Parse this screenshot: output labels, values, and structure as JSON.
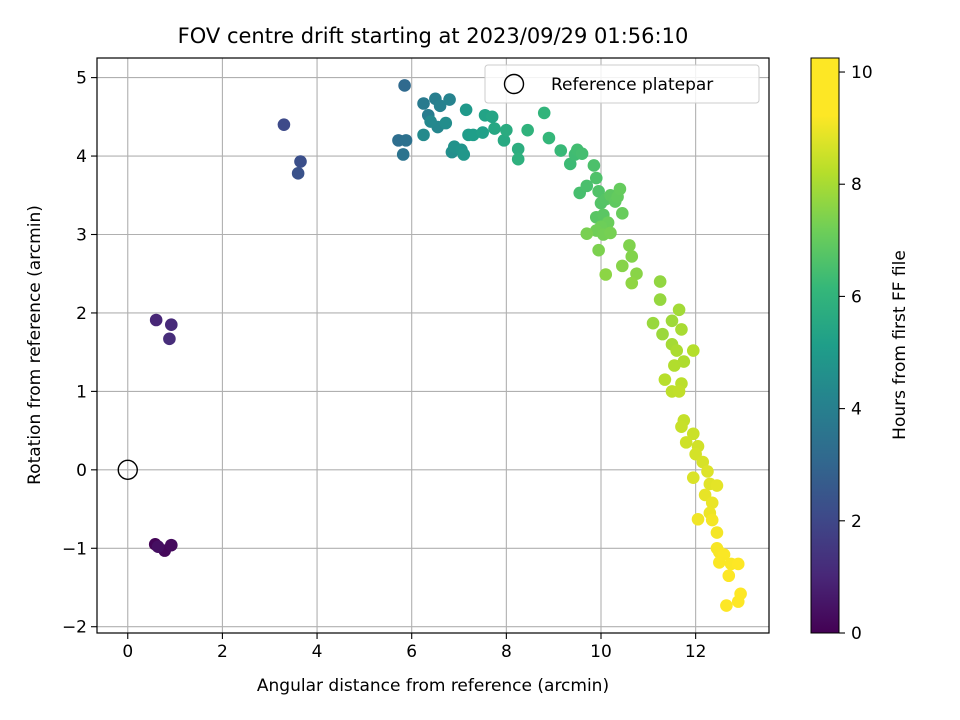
{
  "chart_data": {
    "type": "scatter",
    "title": "FOV centre drift starting at 2023/09/29 01:56:10",
    "xlabel": "Angular distance from reference (arcmin)",
    "ylabel": "Rotation from reference (arcmin)",
    "xlim": [
      -0.65,
      13.55
    ],
    "ylim": [
      -2.08,
      5.25
    ],
    "xticks": [
      0,
      2,
      4,
      6,
      8,
      10,
      12
    ],
    "yticks": [
      -2,
      -1,
      0,
      1,
      2,
      3,
      4,
      5
    ],
    "grid": true,
    "legend": {
      "placement": "top-right",
      "entries": [
        "Reference platepar"
      ]
    },
    "reference_point": {
      "name": "Reference platepar",
      "x": 0,
      "y": 0
    },
    "colorbar": {
      "label": "Hours from first FF file",
      "range": [
        0,
        10.25
      ],
      "ticks": [
        0,
        2,
        4,
        6,
        8,
        10
      ],
      "colormap": "viridis"
    },
    "points": [
      [
        0.58,
        -0.95,
        0.1
      ],
      [
        0.78,
        -1.03,
        0.2
      ],
      [
        0.92,
        -0.96,
        0.3
      ],
      [
        0.64,
        -0.98,
        0.4
      ],
      [
        0.6,
        1.91,
        1.1
      ],
      [
        0.92,
        1.85,
        1.2
      ],
      [
        0.88,
        1.67,
        1.3
      ],
      [
        3.3,
        4.4,
        2.3
      ],
      [
        3.65,
        3.93,
        2.5
      ],
      [
        3.6,
        3.78,
        2.6
      ],
      [
        5.85,
        4.9,
        3.5
      ],
      [
        5.72,
        4.2,
        3.7
      ],
      [
        5.88,
        4.2,
        3.8
      ],
      [
        5.82,
        4.02,
        3.9
      ],
      [
        6.25,
        4.67,
        4.2
      ],
      [
        6.35,
        4.52,
        4.3
      ],
      [
        6.5,
        4.73,
        4.4
      ],
      [
        6.6,
        4.64,
        4.5
      ],
      [
        6.8,
        4.72,
        4.6
      ],
      [
        6.55,
        4.37,
        4.7
      ],
      [
        6.4,
        4.44,
        4.8
      ],
      [
        6.25,
        4.27,
        4.9
      ],
      [
        6.72,
        4.42,
        5.0
      ],
      [
        6.85,
        4.05,
        5.1
      ],
      [
        6.9,
        4.12,
        5.2
      ],
      [
        7.05,
        4.08,
        5.3
      ],
      [
        7.1,
        4.02,
        5.4
      ],
      [
        7.15,
        4.59,
        5.5
      ],
      [
        7.2,
        4.27,
        5.6
      ],
      [
        7.3,
        4.27,
        5.7
      ],
      [
        7.5,
        4.3,
        5.8
      ],
      [
        7.55,
        4.52,
        5.9
      ],
      [
        7.7,
        4.5,
        6.0
      ],
      [
        7.75,
        4.35,
        6.1
      ],
      [
        7.95,
        4.2,
        6.2
      ],
      [
        8.0,
        4.33,
        6.3
      ],
      [
        8.25,
        4.09,
        6.4
      ],
      [
        8.25,
        3.96,
        6.5
      ],
      [
        8.45,
        4.33,
        6.6
      ],
      [
        8.8,
        4.55,
        6.7
      ],
      [
        8.9,
        4.23,
        6.8
      ],
      [
        9.15,
        4.07,
        6.9
      ],
      [
        9.35,
        3.9,
        7.0
      ],
      [
        9.45,
        4.02,
        7.05
      ],
      [
        9.5,
        4.08,
        7.1
      ],
      [
        9.6,
        4.03,
        7.15
      ],
      [
        9.55,
        3.53,
        7.2
      ],
      [
        9.7,
        3.62,
        7.25
      ],
      [
        9.85,
        3.88,
        7.3
      ],
      [
        9.9,
        3.72,
        7.35
      ],
      [
        9.95,
        3.55,
        7.4
      ],
      [
        10.0,
        3.4,
        7.45
      ],
      [
        10.1,
        3.45,
        7.5
      ],
      [
        9.9,
        3.22,
        7.55
      ],
      [
        10.05,
        3.25,
        7.6
      ],
      [
        10.2,
        3.5,
        7.65
      ],
      [
        10.3,
        3.42,
        7.7
      ],
      [
        10.35,
        3.48,
        7.75
      ],
      [
        10.4,
        3.58,
        7.8
      ],
      [
        10.45,
        3.27,
        7.85
      ],
      [
        10.15,
        3.15,
        7.9
      ],
      [
        10.0,
        3.1,
        7.95
      ],
      [
        9.9,
        3.05,
        8.0
      ],
      [
        10.05,
        3.0,
        8.05
      ],
      [
        10.2,
        3.02,
        8.1
      ],
      [
        9.7,
        3.01,
        8.15
      ],
      [
        9.95,
        2.8,
        8.2
      ],
      [
        10.6,
        2.86,
        8.25
      ],
      [
        10.65,
        2.72,
        8.3
      ],
      [
        10.45,
        2.6,
        8.35
      ],
      [
        10.75,
        2.5,
        8.4
      ],
      [
        10.1,
        2.49,
        8.45
      ],
      [
        10.65,
        2.38,
        8.5
      ],
      [
        11.25,
        2.4,
        8.55
      ],
      [
        11.25,
        2.17,
        8.6
      ],
      [
        11.1,
        1.87,
        8.65
      ],
      [
        11.3,
        1.73,
        8.7
      ],
      [
        11.5,
        1.9,
        8.75
      ],
      [
        11.65,
        2.04,
        8.8
      ],
      [
        11.5,
        1.6,
        8.85
      ],
      [
        11.7,
        1.79,
        8.9
      ],
      [
        11.6,
        1.52,
        8.95
      ],
      [
        11.75,
        1.38,
        9.0
      ],
      [
        11.55,
        1.33,
        9.05
      ],
      [
        11.95,
        1.52,
        9.1
      ],
      [
        11.35,
        1.15,
        9.15
      ],
      [
        11.7,
        1.1,
        9.2
      ],
      [
        11.5,
        1.0,
        9.25
      ],
      [
        11.65,
        1.0,
        9.3
      ],
      [
        11.75,
        0.63,
        9.35
      ],
      [
        11.7,
        0.55,
        9.4
      ],
      [
        11.95,
        0.46,
        9.45
      ],
      [
        11.8,
        0.35,
        9.5
      ],
      [
        12.05,
        0.3,
        9.55
      ],
      [
        12.0,
        0.2,
        9.6
      ],
      [
        12.15,
        0.1,
        9.65
      ],
      [
        11.95,
        -0.1,
        9.7
      ],
      [
        12.25,
        -0.02,
        9.75
      ],
      [
        12.3,
        -0.18,
        9.8
      ],
      [
        12.45,
        -0.2,
        9.85
      ],
      [
        12.2,
        -0.32,
        9.9
      ],
      [
        12.35,
        -0.42,
        9.95
      ],
      [
        12.3,
        -0.55,
        10.0
      ],
      [
        12.05,
        -0.63,
        10.05
      ],
      [
        12.35,
        -0.64,
        10.1
      ],
      [
        12.45,
        -0.8,
        10.1
      ],
      [
        12.45,
        -1.0,
        10.15
      ],
      [
        12.5,
        -1.05,
        10.15
      ],
      [
        12.6,
        -1.08,
        10.2
      ],
      [
        12.5,
        -1.18,
        10.2
      ],
      [
        12.75,
        -1.2,
        10.2
      ],
      [
        12.9,
        -1.2,
        10.25
      ],
      [
        12.7,
        -1.35,
        10.25
      ],
      [
        12.95,
        -1.58,
        10.25
      ],
      [
        12.65,
        -1.73,
        10.25
      ],
      [
        12.9,
        -1.68,
        10.25
      ]
    ]
  }
}
